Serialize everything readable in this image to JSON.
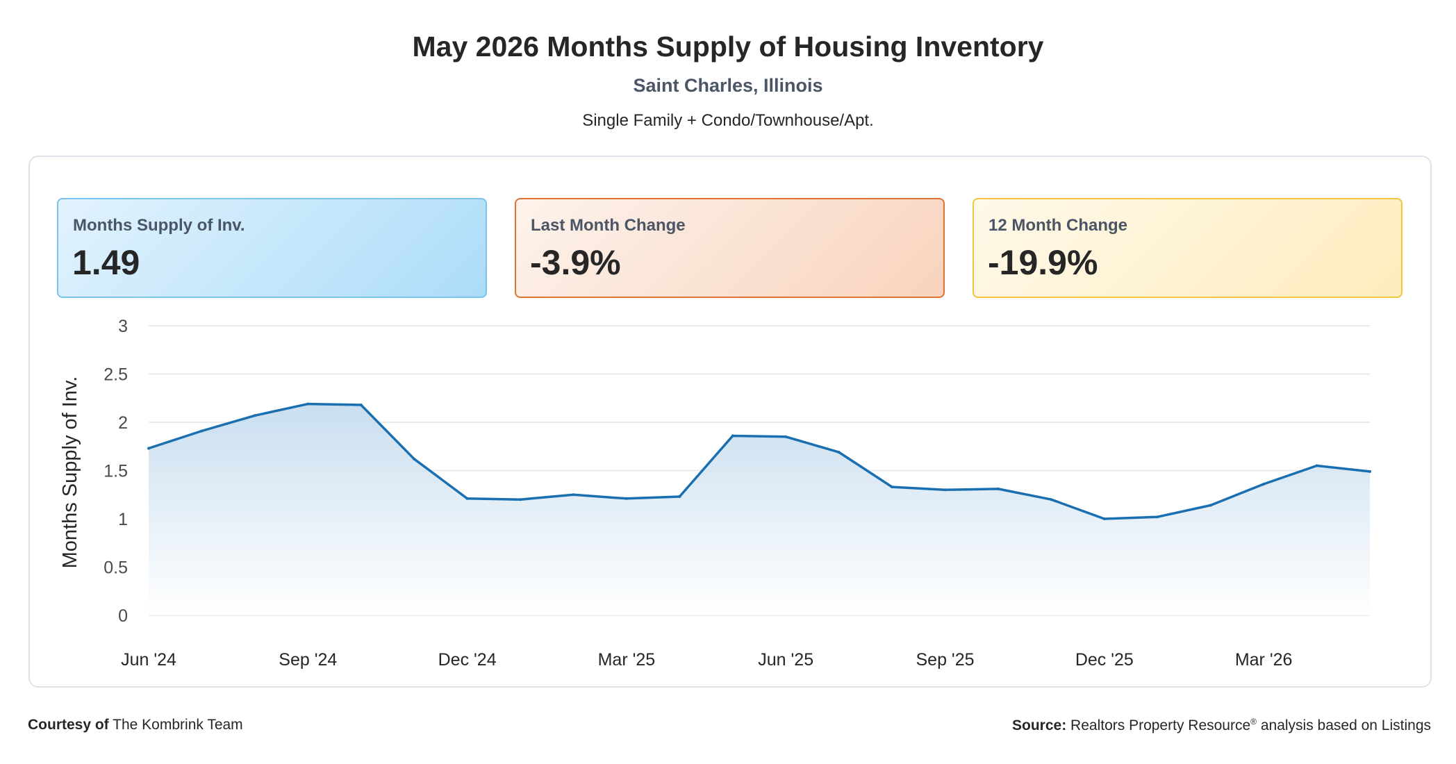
{
  "header": {
    "title": "May 2026 Months Supply of Housing Inventory",
    "location": "Saint Charles, Illinois",
    "segment": "Single Family + Condo/Townhouse/Apt."
  },
  "kpis": {
    "supply": {
      "label": "Months Supply of Inv.",
      "value": "1.49"
    },
    "last_month": {
      "label": "Last Month Change",
      "value": "-3.9%"
    },
    "twelve_month": {
      "label": "12 Month Change",
      "value": "-19.9%"
    }
  },
  "footer": {
    "courtesy_label": "Courtesy of",
    "courtesy_name": "The Kombrink Team",
    "source_label": "Source:",
    "source_text_a": "Realtors Property Resource",
    "source_mark": "®",
    "source_text_b": "analysis based on Listings"
  },
  "colors": {
    "line": "#1a6fb0",
    "area_top": "#c6dcee",
    "grid": "#e2e6ea",
    "kpi_supply_border": "#7cc3ec",
    "kpi_last_border": "#e0732f",
    "kpi_twelve_border": "#f3c53d"
  },
  "chart_data": {
    "type": "area",
    "ylabel": "Months Supply of Inv.",
    "ylim": [
      0,
      3
    ],
    "yticks": [
      "0",
      "0.5",
      "1",
      "1.5",
      "2",
      "2.5",
      "3"
    ],
    "xtick_labels": [
      "Jun '24",
      "Sep '24",
      "Dec '24",
      "Mar '25",
      "Jun '25",
      "Sep '25",
      "Dec '25",
      "Mar '26"
    ],
    "grid": true,
    "categories": [
      "Jun '24",
      "Jul '24",
      "Aug '24",
      "Sep '24",
      "Oct '24",
      "Nov '24",
      "Dec '24",
      "Jan '25",
      "Feb '25",
      "Mar '25",
      "Apr '25",
      "May '25",
      "Jun '25",
      "Jul '25",
      "Aug '25",
      "Sep '25",
      "Oct '25",
      "Nov '25",
      "Dec '25",
      "Jan '26",
      "Feb '26",
      "Mar '26",
      "Apr '26",
      "May '26"
    ],
    "series": [
      {
        "values": [
          1.73,
          1.91,
          2.07,
          2.19,
          2.18,
          1.62,
          1.21,
          1.2,
          1.25,
          1.21,
          1.23,
          1.86,
          1.85,
          1.69,
          1.33,
          1.3,
          1.31,
          1.2,
          1.0,
          1.02,
          1.14,
          1.36,
          1.55,
          1.49
        ]
      }
    ]
  }
}
